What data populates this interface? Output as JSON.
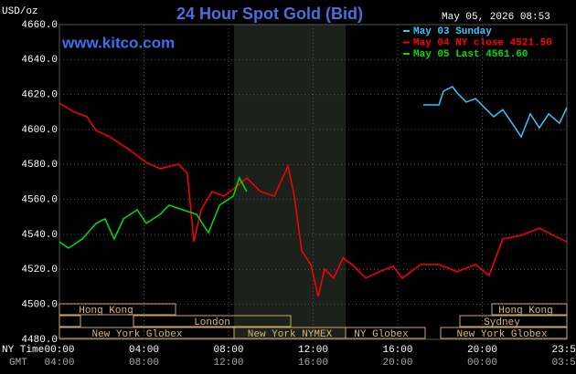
{
  "chart_data": {
    "type": "line",
    "title": "24 Hour Spot Gold (Bid)",
    "site": "www.kitco.com",
    "timestamp": "May 05, 2026 08:53",
    "y_label": "USD/oz",
    "x_label": "NY Time",
    "x2_label": "GMT",
    "xlim": [
      0,
      24
    ],
    "xticks": [
      {
        "value": 0,
        "label": "00:00"
      },
      {
        "value": 4,
        "label": "04:00"
      },
      {
        "value": 8,
        "label": "08:00"
      },
      {
        "value": 12,
        "label": "12:00"
      },
      {
        "value": 16,
        "label": "16:00"
      },
      {
        "value": 20,
        "label": "20:00"
      },
      {
        "value": 24,
        "label": "23:59"
      }
    ],
    "x2ticks": [
      "04:00",
      "08:00",
      "12:00",
      "16:00",
      "20:00",
      "00:00",
      "03:59"
    ],
    "ylim": [
      4480,
      4660
    ],
    "yticks": [
      {
        "value": 4480,
        "label": "4480.0"
      },
      {
        "value": 4500,
        "label": "4500.0"
      },
      {
        "value": 4520,
        "label": "4520.0"
      },
      {
        "value": 4540,
        "label": "4540.0"
      },
      {
        "value": 4560,
        "label": "4560.0"
      },
      {
        "value": 4580,
        "label": "4580.0"
      },
      {
        "value": 4600,
        "label": "4600.0"
      },
      {
        "value": 4620,
        "label": "4620.0"
      },
      {
        "value": 4640,
        "label": "4640.0"
      },
      {
        "value": 4660,
        "label": "4660.0"
      }
    ],
    "grid": true,
    "sessions": [
      "Hong Kong",
      "London",
      "New York Globex",
      "New York NYMEX",
      "NY Globex",
      "Sydney"
    ],
    "series": [
      {
        "name": "May 03 Sunday",
        "color": "#30c8ff",
        "x": [
          17.21,
          17.95,
          18.16,
          18.59,
          18.81,
          19.24,
          19.68,
          20.11,
          20.54,
          20.97,
          21.41,
          21.84,
          22.27,
          22.7,
          23.14,
          23.65,
          24
        ],
        "values": [
          4614.1,
          4614.1,
          4621.9,
          4624.5,
          4620.9,
          4615.7,
          4617.7,
          4612.5,
          4607.3,
          4611.4,
          4603.6,
          4595.8,
          4608.9,
          4601,
          4608.9,
          4603.6,
          4612.5
        ]
      },
      {
        "name": "May 04 NY close 4521.50",
        "color": "#ff0000",
        "x": [
          0,
          0.65,
          1.3,
          1.73,
          2.38,
          3.24,
          4.11,
          4.76,
          5.62,
          6.05,
          6.36,
          6.7,
          7.22,
          7.78,
          8.35,
          8.86,
          9.51,
          10.16,
          10.81,
          11.11,
          11.46,
          11.89,
          12.24,
          12.54,
          12.97,
          13.41,
          13.84,
          14.49,
          15.14,
          15.78,
          16.22,
          17.08,
          17.95,
          18.81,
          19.68,
          20.32,
          20.97,
          21.84,
          22.7,
          23.35,
          24
        ],
        "values": [
          4615.1,
          4610.4,
          4607.3,
          4599.5,
          4595.8,
          4589,
          4581.2,
          4577.6,
          4580.2,
          4575,
          4535.8,
          4554.1,
          4564.5,
          4561.9,
          4567.1,
          4572.3,
          4564.5,
          4561.9,
          4579.1,
          4561.9,
          4530.6,
          4522.8,
          4504.5,
          4520.2,
          4515,
          4526.5,
          4522.8,
          4515,
          4518.7,
          4521.8,
          4515,
          4522.8,
          4522.8,
          4518.7,
          4522.8,
          4516.5,
          4537.4,
          4539.5,
          4543.6,
          4539.5,
          4535.8
        ]
      },
      {
        "name": "May 05 Last 4561.60",
        "color": "#00e000",
        "x": [
          0,
          0.43,
          1.08,
          1.73,
          2.16,
          2.59,
          3.03,
          3.68,
          4.11,
          4.76,
          5.19,
          5.84,
          6.49,
          7.05,
          7.57,
          8.22,
          8.51,
          8.86
        ],
        "values": [
          4535.8,
          4532.2,
          4537.4,
          4546.3,
          4548.9,
          4537.4,
          4548.9,
          4554.1,
          4546.3,
          4551.5,
          4556.7,
          4554.1,
          4551.5,
          4541,
          4556.7,
          4561.9,
          4572.3,
          4564.5
        ]
      }
    ]
  }
}
